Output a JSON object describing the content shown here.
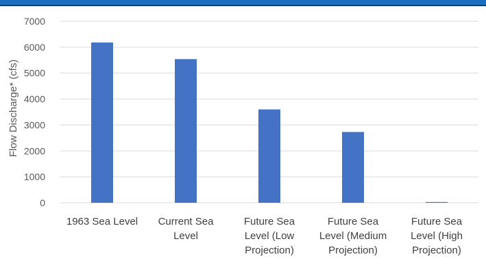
{
  "chart_data": {
    "type": "bar",
    "title": "",
    "xlabel": "",
    "ylabel": "Flow Discharge* (cfs)",
    "categories": [
      [
        "1963 Sea Level"
      ],
      [
        "Current Sea",
        "Level"
      ],
      [
        "Future Sea",
        "Level (Low",
        "Projection)"
      ],
      [
        "Future Sea",
        "Level (Medium",
        "Projection)"
      ],
      [
        "Future Sea",
        "Level (High",
        "Projection)"
      ]
    ],
    "values": [
      6180,
      5540,
      3600,
      2730,
      30
    ],
    "ylim": [
      0,
      7000
    ],
    "yticks": [
      0,
      1000,
      2000,
      3000,
      4000,
      5000,
      6000,
      7000
    ],
    "grid": true,
    "legend": "none",
    "colors": {
      "bar": "#4472c4",
      "grid": "#d9d9d9",
      "header": "#1a6fc0"
    }
  }
}
